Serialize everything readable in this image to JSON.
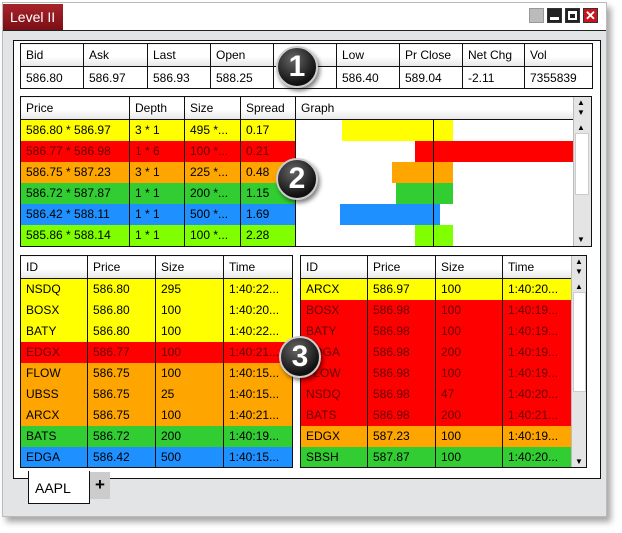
{
  "window": {
    "title": "Level II"
  },
  "quote": {
    "headers": [
      "Bid",
      "Ask",
      "Last",
      "Open",
      "",
      "Low",
      "Pr Close",
      "Net Chg",
      "Vol"
    ],
    "values": [
      "586.80",
      "586.97",
      "586.93",
      "588.25",
      "",
      "586.40",
      "589.04",
      "-2.11",
      "7355839"
    ]
  },
  "book": {
    "headers": [
      "Price",
      "Depth",
      "Size",
      "Spread",
      "Graph"
    ],
    "rows": [
      {
        "price": "586.80 * 586.97",
        "depth": "3 * 1",
        "size": "495 *...",
        "spread": "0.17",
        "color": "#ffff00"
      },
      {
        "price": "586.77 * 586.98",
        "depth": "1 * 6",
        "size": "100 *...",
        "spread": "0.21",
        "color": "#ff0000"
      },
      {
        "price": "586.75 * 587.23",
        "depth": "3 * 1",
        "size": "225 *...",
        "spread": "0.48",
        "color": "#ffa500"
      },
      {
        "price": "586.72 * 587.87",
        "depth": "1 * 1",
        "size": "200 *...",
        "spread": "1.15",
        "color": "#32cd32"
      },
      {
        "price": "586.42 * 588.11",
        "depth": "1 * 1",
        "size": "500 *...",
        "spread": "1.69",
        "color": "#1e90ff"
      },
      {
        "price": "585.86 * 588.14",
        "depth": "1 * 1",
        "size": "100 *...",
        "spread": "2.28",
        "color": "#7fff00"
      }
    ]
  },
  "bids": {
    "headers": [
      "ID",
      "Price",
      "Size",
      "Time"
    ],
    "rows": [
      {
        "id": "NSDQ",
        "price": "586.80",
        "size": "295",
        "time": "1:40:22...",
        "color": "#ffff00"
      },
      {
        "id": "BOSX",
        "price": "586.80",
        "size": "100",
        "time": "1:40:20...",
        "color": "#ffff00"
      },
      {
        "id": "BATY",
        "price": "586.80",
        "size": "100",
        "time": "1:40:22...",
        "color": "#ffff00"
      },
      {
        "id": "EDGX",
        "price": "586.77",
        "size": "100",
        "time": "1:40:21...",
        "color": "#ff0000"
      },
      {
        "id": "FLOW",
        "price": "586.75",
        "size": "100",
        "time": "1:40:15...",
        "color": "#ffa500"
      },
      {
        "id": "UBSS",
        "price": "586.75",
        "size": "25",
        "time": "1:40:15...",
        "color": "#ffa500"
      },
      {
        "id": "ARCX",
        "price": "586.75",
        "size": "100",
        "time": "1:40:21...",
        "color": "#ffa500"
      },
      {
        "id": "BATS",
        "price": "586.72",
        "size": "200",
        "time": "1:40:19...",
        "color": "#32cd32"
      },
      {
        "id": "EDGA",
        "price": "586.42",
        "size": "500",
        "time": "1:40:15...",
        "color": "#1e90ff"
      }
    ]
  },
  "asks": {
    "headers": [
      "ID",
      "Price",
      "Size",
      "Time"
    ],
    "rows": [
      {
        "id": "ARCX",
        "price": "586.97",
        "size": "100",
        "time": "1:40:20...",
        "color": "#ffff00"
      },
      {
        "id": "BOSX",
        "price": "586.98",
        "size": "100",
        "time": "1:40:19...",
        "color": "#ff0000"
      },
      {
        "id": "BATY",
        "price": "586.98",
        "size": "100",
        "time": "1:40:19...",
        "color": "#ff0000"
      },
      {
        "id": "EDGA",
        "price": "586.98",
        "size": "200",
        "time": "1:40:19...",
        "color": "#ff0000"
      },
      {
        "id": "FLOW",
        "price": "586.98",
        "size": "100",
        "time": "1:40:19...",
        "color": "#ff0000"
      },
      {
        "id": "NSDQ",
        "price": "586.98",
        "size": "47",
        "time": "1:40:20...",
        "color": "#ff0000"
      },
      {
        "id": "BATS",
        "price": "586.98",
        "size": "200",
        "time": "1:40:21...",
        "color": "#ff0000"
      },
      {
        "id": "EDGX",
        "price": "587.23",
        "size": "100",
        "time": "1:40:19...",
        "color": "#ffa500"
      },
      {
        "id": "SBSH",
        "price": "587.87",
        "size": "100",
        "time": "1:40:20...",
        "color": "#32cd32"
      }
    ]
  },
  "badges": [
    "1",
    "2",
    "3"
  ],
  "tabs": {
    "items": [
      "AAPL"
    ],
    "add_label": "+"
  }
}
